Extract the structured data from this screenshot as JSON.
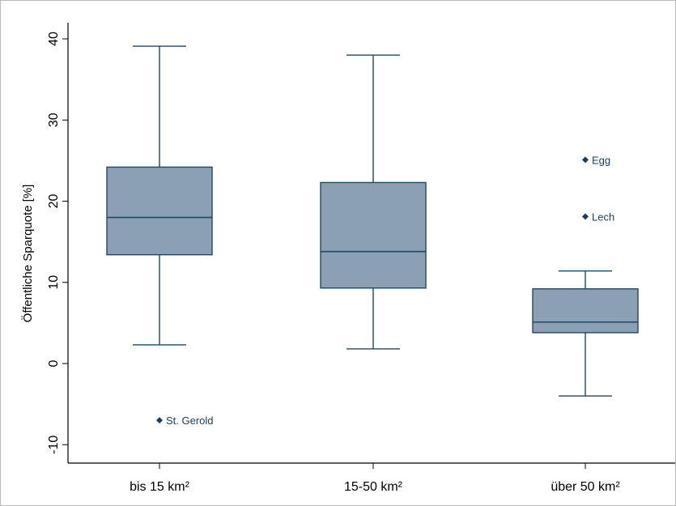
{
  "chart_data": {
    "type": "box",
    "title": "",
    "xlabel": "",
    "ylabel": "Öffentliche Sparquote [%]",
    "ylim": [
      -12,
      42
    ],
    "yticks": [
      40,
      30,
      20,
      10,
      0,
      -10
    ],
    "ytick_labels": [
      "40",
      "30",
      "20",
      "10",
      "0",
      "-10"
    ],
    "grid": false,
    "colors": {
      "box_fill": "#8ca0b4",
      "box_stroke": "#1f4766",
      "marker": "#1a3d5c"
    },
    "categories": [
      "bis 15 km²",
      "15-50 km²",
      "über 50 km²"
    ],
    "boxes": [
      {
        "category": "bis 15 km²",
        "whisker_low": 2.3,
        "q1": 13.4,
        "median": 18.0,
        "q3": 24.2,
        "whisker_high": 39.1,
        "outliers": [
          {
            "value": -7.0,
            "label": "St. Gerold"
          }
        ]
      },
      {
        "category": "15-50 km²",
        "whisker_low": 1.8,
        "q1": 9.3,
        "median": 13.8,
        "q3": 22.3,
        "whisker_high": 38.0,
        "outliers": []
      },
      {
        "category": "über 50 km²",
        "whisker_low": -4.0,
        "q1": 3.8,
        "median": 5.1,
        "q3": 9.2,
        "whisker_high": 11.4,
        "outliers": [
          {
            "value": 25.1,
            "label": "Egg"
          },
          {
            "value": 18.1,
            "label": "Lech"
          }
        ]
      }
    ]
  }
}
